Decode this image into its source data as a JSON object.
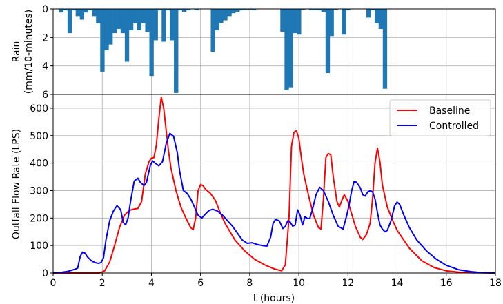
{
  "chart_data": [
    {
      "type": "bar",
      "panel": "rain",
      "ylabel_lines": [
        "Rain",
        "(mm/10-minutes)"
      ],
      "ylim": [
        0,
        6
      ],
      "y_inverted": true,
      "yticks": [
        0,
        2,
        4,
        6
      ],
      "xlim": [
        0,
        18
      ],
      "bar_width_hours": 0.1667,
      "color": "#1f77b4",
      "grid": true,
      "bars": [
        {
          "x": 0.33,
          "v": 0.25
        },
        {
          "x": 0.5,
          "v": 0.1
        },
        {
          "x": 0.67,
          "v": 1.7
        },
        {
          "x": 0.83,
          "v": 0.1
        },
        {
          "x": 1.0,
          "v": 0.5
        },
        {
          "x": 1.17,
          "v": 0.75
        },
        {
          "x": 1.33,
          "v": 0.25
        },
        {
          "x": 1.5,
          "v": 0.1
        },
        {
          "x": 1.67,
          "v": 0.5
        },
        {
          "x": 1.83,
          "v": 1.0
        },
        {
          "x": 2.0,
          "v": 4.4
        },
        {
          "x": 2.17,
          "v": 2.9
        },
        {
          "x": 2.33,
          "v": 2.5
        },
        {
          "x": 2.5,
          "v": 1.7
        },
        {
          "x": 2.67,
          "v": 1.4
        },
        {
          "x": 2.83,
          "v": 1.7
        },
        {
          "x": 3.0,
          "v": 3.7
        },
        {
          "x": 3.17,
          "v": 1.5
        },
        {
          "x": 3.33,
          "v": 1.0
        },
        {
          "x": 3.5,
          "v": 1.5
        },
        {
          "x": 3.67,
          "v": 1.0
        },
        {
          "x": 3.83,
          "v": 1.6
        },
        {
          "x": 4.0,
          "v": 4.7
        },
        {
          "x": 4.17,
          "v": 2.2
        },
        {
          "x": 4.33,
          "v": 0.1
        },
        {
          "x": 4.5,
          "v": 2.3
        },
        {
          "x": 4.67,
          "v": 0.1
        },
        {
          "x": 4.83,
          "v": 2.2
        },
        {
          "x": 5.0,
          "v": 5.9
        },
        {
          "x": 5.17,
          "v": 0.1
        },
        {
          "x": 5.33,
          "v": 0.2
        },
        {
          "x": 5.5,
          "v": 0.1
        },
        {
          "x": 5.83,
          "v": 0.1
        },
        {
          "x": 6.5,
          "v": 3.0
        },
        {
          "x": 6.67,
          "v": 1.5
        },
        {
          "x": 6.83,
          "v": 1.0
        },
        {
          "x": 7.0,
          "v": 0.8
        },
        {
          "x": 7.17,
          "v": 0.5
        },
        {
          "x": 7.33,
          "v": 0.3
        },
        {
          "x": 7.5,
          "v": 0.2
        },
        {
          "x": 7.67,
          "v": 0.1
        },
        {
          "x": 7.83,
          "v": 0.05
        },
        {
          "x": 8.0,
          "v": 0.05
        },
        {
          "x": 8.17,
          "v": 0.1
        },
        {
          "x": 9.33,
          "v": 1.6
        },
        {
          "x": 9.5,
          "v": 5.7
        },
        {
          "x": 9.67,
          "v": 5.5
        },
        {
          "x": 9.83,
          "v": 1.7
        },
        {
          "x": 10.0,
          "v": 1.8
        },
        {
          "x": 10.17,
          "v": 0.05
        },
        {
          "x": 10.5,
          "v": 0.1
        },
        {
          "x": 10.67,
          "v": 0.05
        },
        {
          "x": 10.83,
          "v": 0.1
        },
        {
          "x": 11.0,
          "v": 0.2
        },
        {
          "x": 11.17,
          "v": 4.5
        },
        {
          "x": 11.33,
          "v": 1.9
        },
        {
          "x": 11.5,
          "v": 0.05
        },
        {
          "x": 11.83,
          "v": 1.8
        },
        {
          "x": 12.0,
          "v": 0.1
        },
        {
          "x": 12.83,
          "v": 0.6
        },
        {
          "x": 13.0,
          "v": 0.1
        },
        {
          "x": 13.17,
          "v": 1.0
        },
        {
          "x": 13.33,
          "v": 1.4
        },
        {
          "x": 13.5,
          "v": 5.6
        }
      ]
    },
    {
      "type": "line",
      "panel": "flow",
      "xlabel": "t (hours)",
      "ylabel": "Outfall Flow Rate (LPS)",
      "xlim": [
        0,
        18
      ],
      "ylim": [
        0,
        650
      ],
      "xticks": [
        0,
        2,
        4,
        6,
        8,
        10,
        12,
        14,
        16,
        18
      ],
      "yticks": [
        0,
        100,
        200,
        300,
        400,
        500,
        600
      ],
      "grid": true,
      "legend_position": "upper-right",
      "series": [
        {
          "name": "Baseline",
          "color": "#ff0000",
          "points": [
            [
              0,
              0
            ],
            [
              1,
              0
            ],
            [
              1.9,
              0
            ],
            [
              2.1,
              8
            ],
            [
              2.3,
              40
            ],
            [
              2.5,
              100
            ],
            [
              2.7,
              165
            ],
            [
              2.9,
              210
            ],
            [
              3.1,
              228
            ],
            [
              3.3,
              233
            ],
            [
              3.45,
              235
            ],
            [
              3.6,
              260
            ],
            [
              3.75,
              360
            ],
            [
              3.9,
              405
            ],
            [
              4.0,
              418
            ],
            [
              4.1,
              420
            ],
            [
              4.2,
              465
            ],
            [
              4.3,
              560
            ],
            [
              4.4,
              640
            ],
            [
              4.5,
              600
            ],
            [
              4.6,
              520
            ],
            [
              4.7,
              440
            ],
            [
              4.8,
              380
            ],
            [
              5.0,
              300
            ],
            [
              5.2,
              240
            ],
            [
              5.4,
              200
            ],
            [
              5.6,
              165
            ],
            [
              5.7,
              158
            ],
            [
              5.8,
              200
            ],
            [
              5.9,
              300
            ],
            [
              6.0,
              322
            ],
            [
              6.1,
              318
            ],
            [
              6.2,
              305
            ],
            [
              6.4,
              290
            ],
            [
              6.6,
              265
            ],
            [
              6.8,
              220
            ],
            [
              7.0,
              180
            ],
            [
              7.4,
              120
            ],
            [
              7.8,
              80
            ],
            [
              8.2,
              50
            ],
            [
              8.6,
              30
            ],
            [
              9.0,
              15
            ],
            [
              9.3,
              8
            ],
            [
              9.45,
              30
            ],
            [
              9.6,
              200
            ],
            [
              9.7,
              460
            ],
            [
              9.8,
              512
            ],
            [
              9.9,
              518
            ],
            [
              10.0,
              490
            ],
            [
              10.1,
              420
            ],
            [
              10.2,
              360
            ],
            [
              10.4,
              280
            ],
            [
              10.6,
              210
            ],
            [
              10.8,
              165
            ],
            [
              10.9,
              160
            ],
            [
              11.0,
              270
            ],
            [
              11.1,
              420
            ],
            [
              11.2,
              435
            ],
            [
              11.3,
              430
            ],
            [
              11.4,
              350
            ],
            [
              11.55,
              260
            ],
            [
              11.65,
              240
            ],
            [
              11.75,
              265
            ],
            [
              11.85,
              285
            ],
            [
              12.0,
              260
            ],
            [
              12.1,
              230
            ],
            [
              12.3,
              170
            ],
            [
              12.5,
              130
            ],
            [
              12.6,
              122
            ],
            [
              12.75,
              140
            ],
            [
              12.9,
              180
            ],
            [
              13.0,
              270
            ],
            [
              13.1,
              400
            ],
            [
              13.2,
              455
            ],
            [
              13.3,
              405
            ],
            [
              13.4,
              320
            ],
            [
              13.6,
              240
            ],
            [
              13.8,
              195
            ],
            [
              14.0,
              155
            ],
            [
              14.5,
              90
            ],
            [
              15.0,
              45
            ],
            [
              15.5,
              20
            ],
            [
              16.0,
              8
            ],
            [
              16.5,
              3
            ],
            [
              17.0,
              1
            ],
            [
              18,
              0
            ]
          ]
        },
        {
          "name": "Controlled",
          "color": "#0000ff",
          "points": [
            [
              0,
              0
            ],
            [
              0.3,
              2
            ],
            [
              0.6,
              6
            ],
            [
              0.9,
              14
            ],
            [
              1.0,
              18
            ],
            [
              1.1,
              60
            ],
            [
              1.2,
              76
            ],
            [
              1.3,
              72
            ],
            [
              1.4,
              58
            ],
            [
              1.55,
              45
            ],
            [
              1.7,
              38
            ],
            [
              1.85,
              35
            ],
            [
              1.95,
              38
            ],
            [
              2.05,
              55
            ],
            [
              2.15,
              120
            ],
            [
              2.3,
              190
            ],
            [
              2.45,
              225
            ],
            [
              2.6,
              245
            ],
            [
              2.75,
              230
            ],
            [
              2.85,
              185
            ],
            [
              2.95,
              175
            ],
            [
              3.05,
              200
            ],
            [
              3.15,
              260
            ],
            [
              3.3,
              335
            ],
            [
              3.45,
              345
            ],
            [
              3.55,
              330
            ],
            [
              3.7,
              318
            ],
            [
              3.8,
              330
            ],
            [
              3.95,
              390
            ],
            [
              4.05,
              408
            ],
            [
              4.15,
              400
            ],
            [
              4.3,
              390
            ],
            [
              4.45,
              405
            ],
            [
              4.6,
              470
            ],
            [
              4.75,
              508
            ],
            [
              4.9,
              498
            ],
            [
              5.05,
              440
            ],
            [
              5.15,
              370
            ],
            [
              5.3,
              300
            ],
            [
              5.45,
              290
            ],
            [
              5.6,
              270
            ],
            [
              5.75,
              240
            ],
            [
              5.9,
              210
            ],
            [
              6.05,
              200
            ],
            [
              6.2,
              215
            ],
            [
              6.35,
              228
            ],
            [
              6.5,
              232
            ],
            [
              6.7,
              225
            ],
            [
              6.9,
              210
            ],
            [
              7.1,
              190
            ],
            [
              7.3,
              170
            ],
            [
              7.5,
              145
            ],
            [
              7.7,
              120
            ],
            [
              7.9,
              108
            ],
            [
              8.1,
              110
            ],
            [
              8.3,
              104
            ],
            [
              8.5,
              100
            ],
            [
              8.7,
              98
            ],
            [
              8.85,
              130
            ],
            [
              8.95,
              180
            ],
            [
              9.05,
              195
            ],
            [
              9.2,
              190
            ],
            [
              9.35,
              162
            ],
            [
              9.45,
              170
            ],
            [
              9.55,
              190
            ],
            [
              9.65,
              185
            ],
            [
              9.75,
              170
            ],
            [
              9.85,
              175
            ],
            [
              9.95,
              230
            ],
            [
              10.05,
              210
            ],
            [
              10.15,
              175
            ],
            [
              10.25,
              205
            ],
            [
              10.35,
              198
            ],
            [
              10.45,
              200
            ],
            [
              10.55,
              230
            ],
            [
              10.7,
              285
            ],
            [
              10.85,
              312
            ],
            [
              11.0,
              300
            ],
            [
              11.2,
              260
            ],
            [
              11.4,
              210
            ],
            [
              11.6,
              170
            ],
            [
              11.8,
              160
            ],
            [
              11.95,
              210
            ],
            [
              12.05,
              250
            ],
            [
              12.15,
              300
            ],
            [
              12.25,
              333
            ],
            [
              12.35,
              330
            ],
            [
              12.5,
              310
            ],
            [
              12.6,
              285
            ],
            [
              12.7,
              280
            ],
            [
              12.8,
              295
            ],
            [
              12.9,
              300
            ],
            [
              13.0,
              295
            ],
            [
              13.1,
              270
            ],
            [
              13.2,
              220
            ],
            [
              13.3,
              175
            ],
            [
              13.4,
              160
            ],
            [
              13.5,
              150
            ],
            [
              13.6,
              155
            ],
            [
              13.75,
              190
            ],
            [
              13.9,
              245
            ],
            [
              14.0,
              258
            ],
            [
              14.1,
              250
            ],
            [
              14.3,
              205
            ],
            [
              14.5,
              165
            ],
            [
              14.8,
              120
            ],
            [
              15.2,
              80
            ],
            [
              15.6,
              50
            ],
            [
              16.0,
              28
            ],
            [
              16.5,
              12
            ],
            [
              17.0,
              5
            ],
            [
              17.5,
              1
            ],
            [
              18,
              0
            ]
          ]
        }
      ]
    }
  ]
}
